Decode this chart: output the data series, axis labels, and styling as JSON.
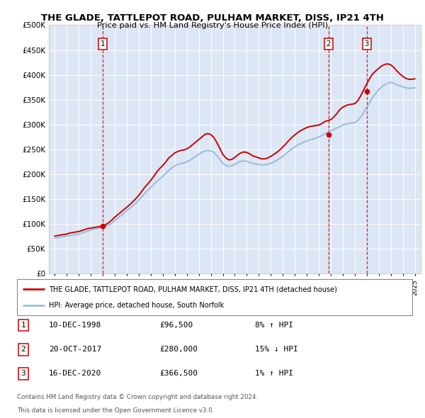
{
  "title": "THE GLADE, TATTLEPOT ROAD, PULHAM MARKET, DISS, IP21 4TH",
  "subtitle": "Price paid vs. HM Land Registry's House Price Index (HPI)",
  "legend_line1": "THE GLADE, TATTLEPOT ROAD, PULHAM MARKET, DISS, IP21 4TH (detached house)",
  "legend_line2": "HPI: Average price, detached house, South Norfolk",
  "footer1": "Contains HM Land Registry data © Crown copyright and database right 2024.",
  "footer2": "This data is licensed under the Open Government Licence v3.0.",
  "transactions": [
    {
      "num": "1",
      "date": "10-DEC-1998",
      "price": "£96,500",
      "hpi": "8% ↑ HPI"
    },
    {
      "num": "2",
      "date": "20-OCT-2017",
      "price": "£280,000",
      "hpi": "15% ↓ HPI"
    },
    {
      "num": "3",
      "date": "16-DEC-2020",
      "price": "£366,500",
      "hpi": "1% ↑ HPI"
    }
  ],
  "sale_points": [
    {
      "year": 1999.0,
      "price": 96500,
      "num": "1"
    },
    {
      "year": 2017.8,
      "price": 280000,
      "num": "2"
    },
    {
      "year": 2021.0,
      "price": 366500,
      "num": "3"
    }
  ],
  "hpi_years": [
    1995,
    1995.25,
    1995.5,
    1995.75,
    1996,
    1996.25,
    1996.5,
    1996.75,
    1997,
    1997.25,
    1997.5,
    1997.75,
    1998,
    1998.25,
    1998.5,
    1998.75,
    1999,
    1999.25,
    1999.5,
    1999.75,
    2000,
    2000.25,
    2000.5,
    2000.75,
    2001,
    2001.25,
    2001.5,
    2001.75,
    2002,
    2002.25,
    2002.5,
    2002.75,
    2003,
    2003.25,
    2003.5,
    2003.75,
    2004,
    2004.25,
    2004.5,
    2004.75,
    2005,
    2005.25,
    2005.5,
    2005.75,
    2006,
    2006.25,
    2006.5,
    2006.75,
    2007,
    2007.25,
    2007.5,
    2007.75,
    2008,
    2008.25,
    2008.5,
    2008.75,
    2009,
    2009.25,
    2009.5,
    2009.75,
    2010,
    2010.25,
    2010.5,
    2010.75,
    2011,
    2011.25,
    2011.5,
    2011.75,
    2012,
    2012.25,
    2012.5,
    2012.75,
    2013,
    2013.25,
    2013.5,
    2013.75,
    2014,
    2014.25,
    2014.5,
    2014.75,
    2015,
    2015.25,
    2015.5,
    2015.75,
    2016,
    2016.25,
    2016.5,
    2016.75,
    2017,
    2017.25,
    2017.5,
    2017.75,
    2018,
    2018.25,
    2018.5,
    2018.75,
    2019,
    2019.25,
    2019.5,
    2019.75,
    2020,
    2020.25,
    2020.5,
    2020.75,
    2021,
    2021.25,
    2021.5,
    2021.75,
    2022,
    2022.25,
    2022.5,
    2022.75,
    2023,
    2023.25,
    2023.5,
    2023.75,
    2024,
    2024.25,
    2024.5,
    2024.75,
    2025
  ],
  "hpi_vals": [
    72000,
    73000,
    74000,
    75000,
    76000,
    77000,
    78000,
    79000,
    80000,
    82000,
    84000,
    86000,
    88000,
    90000,
    91000,
    92000,
    93000,
    95000,
    98000,
    102000,
    107000,
    112000,
    117000,
    122000,
    127000,
    132000,
    137000,
    142000,
    148000,
    155000,
    162000,
    168000,
    174000,
    180000,
    186000,
    191000,
    196000,
    202000,
    208000,
    213000,
    217000,
    220000,
    222000,
    223000,
    225000,
    228000,
    232000,
    236000,
    240000,
    244000,
    247000,
    248000,
    247000,
    244000,
    238000,
    230000,
    222000,
    218000,
    216000,
    217000,
    220000,
    224000,
    226000,
    227000,
    226000,
    224000,
    222000,
    221000,
    220000,
    219000,
    219000,
    220000,
    222000,
    225000,
    228000,
    232000,
    236000,
    241000,
    246000,
    251000,
    255000,
    259000,
    262000,
    265000,
    267000,
    269000,
    271000,
    273000,
    275000,
    278000,
    281000,
    284000,
    287000,
    290000,
    293000,
    296000,
    299000,
    301000,
    302000,
    303000,
    304000,
    308000,
    315000,
    325000,
    335000,
    345000,
    355000,
    363000,
    370000,
    376000,
    380000,
    383000,
    385000,
    383000,
    380000,
    378000,
    376000,
    374000,
    373000,
    373000,
    374000
  ],
  "prop_years": [
    1995,
    1995.25,
    1995.5,
    1995.75,
    1996,
    1996.25,
    1996.5,
    1996.75,
    1997,
    1997.25,
    1997.5,
    1997.75,
    1998,
    1998.25,
    1998.5,
    1998.75,
    1999,
    1999.25,
    1999.5,
    1999.75,
    2000,
    2000.25,
    2000.5,
    2000.75,
    2001,
    2001.25,
    2001.5,
    2001.75,
    2002,
    2002.25,
    2002.5,
    2002.75,
    2003,
    2003.25,
    2003.5,
    2003.75,
    2004,
    2004.25,
    2004.5,
    2004.75,
    2005,
    2005.25,
    2005.5,
    2005.75,
    2006,
    2006.25,
    2006.5,
    2006.75,
    2007,
    2007.25,
    2007.5,
    2007.75,
    2008,
    2008.25,
    2008.5,
    2008.75,
    2009,
    2009.25,
    2009.5,
    2009.75,
    2010,
    2010.25,
    2010.5,
    2010.75,
    2011,
    2011.25,
    2011.5,
    2011.75,
    2012,
    2012.25,
    2012.5,
    2012.75,
    2013,
    2013.25,
    2013.5,
    2013.75,
    2014,
    2014.25,
    2014.5,
    2014.75,
    2015,
    2015.25,
    2015.5,
    2015.75,
    2016,
    2016.25,
    2016.5,
    2016.75,
    2017,
    2017.25,
    2017.5,
    2017.75,
    2018,
    2018.25,
    2018.5,
    2018.75,
    2019,
    2019.25,
    2019.5,
    2019.75,
    2020,
    2020.25,
    2020.5,
    2020.75,
    2021,
    2021.25,
    2021.5,
    2021.75,
    2022,
    2022.25,
    2022.5,
    2022.75,
    2023,
    2023.25,
    2023.5,
    2023.75,
    2024,
    2024.25,
    2024.5,
    2024.75,
    2025
  ],
  "prop_vals": [
    76000,
    77000,
    78000,
    79000,
    80000,
    82000,
    83000,
    84000,
    85000,
    87000,
    89000,
    91000,
    92000,
    93000,
    94000,
    95000,
    96500,
    99000,
    103000,
    108000,
    114000,
    119000,
    124000,
    129000,
    134000,
    139000,
    145000,
    151000,
    158000,
    166000,
    174000,
    181000,
    188000,
    196000,
    205000,
    212000,
    218000,
    225000,
    233000,
    238000,
    243000,
    246000,
    248000,
    249000,
    251000,
    255000,
    260000,
    265000,
    270000,
    275000,
    280000,
    282000,
    280000,
    274000,
    264000,
    252000,
    240000,
    233000,
    229000,
    230000,
    234000,
    239000,
    243000,
    245000,
    244000,
    241000,
    237000,
    235000,
    233000,
    231000,
    231000,
    233000,
    236000,
    240000,
    244000,
    249000,
    255000,
    261000,
    268000,
    274000,
    279000,
    284000,
    288000,
    291000,
    294000,
    296000,
    297000,
    298000,
    299000,
    302000,
    306000,
    308000,
    310000,
    315000,
    322000,
    330000,
    335000,
    338000,
    340000,
    341000,
    342000,
    348000,
    358000,
    370000,
    382000,
    393000,
    402000,
    408000,
    413000,
    418000,
    421000,
    422000,
    420000,
    415000,
    408000,
    402000,
    397000,
    393000,
    391000,
    391000,
    392000
  ],
  "ylim": [
    0,
    500000
  ],
  "yticks": [
    0,
    50000,
    100000,
    150000,
    200000,
    250000,
    300000,
    350000,
    400000,
    450000,
    500000
  ],
  "ytick_labels": [
    "£0",
    "£50K",
    "£100K",
    "£150K",
    "£200K",
    "£250K",
    "£300K",
    "£350K",
    "£400K",
    "£450K",
    "£500K"
  ],
  "xlim_start": 1994.5,
  "xlim_end": 2025.5,
  "xticks": [
    1995,
    1996,
    1997,
    1998,
    1999,
    2000,
    2001,
    2002,
    2003,
    2004,
    2005,
    2006,
    2007,
    2008,
    2009,
    2010,
    2011,
    2012,
    2013,
    2014,
    2015,
    2016,
    2017,
    2018,
    2019,
    2020,
    2021,
    2022,
    2023,
    2024,
    2025
  ],
  "plot_bg": "#dce6f5",
  "red_color": "#cc0000",
  "blue_color": "#99bbdd",
  "dashed_color": "#cc0000",
  "box_border": "#cc0000"
}
